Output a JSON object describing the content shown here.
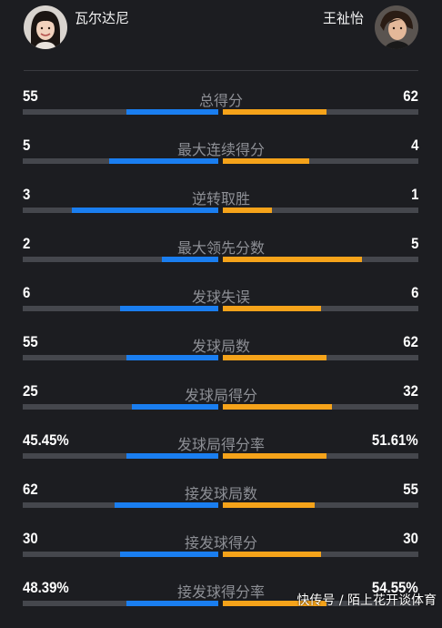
{
  "players": {
    "left": {
      "name": "瓦尔达尼"
    },
    "right": {
      "name": "王祉怡"
    }
  },
  "colors": {
    "left_bar": "#1a7ef0",
    "right_bar": "#f5a31a",
    "track": "#45474d"
  },
  "stats": [
    {
      "label": "总得分",
      "left": "55",
      "right": "62",
      "left_ratio": 0.47,
      "right_ratio": 0.53
    },
    {
      "label": "最大连续得分",
      "left": "5",
      "right": "4",
      "left_ratio": 0.56,
      "right_ratio": 0.44
    },
    {
      "label": "逆转取胜",
      "left": "3",
      "right": "1",
      "left_ratio": 0.75,
      "right_ratio": 0.25
    },
    {
      "label": "最大领先分数",
      "left": "2",
      "right": "5",
      "left_ratio": 0.29,
      "right_ratio": 0.71
    },
    {
      "label": "发球失误",
      "left": "6",
      "right": "6",
      "left_ratio": 0.5,
      "right_ratio": 0.5
    },
    {
      "label": "发球局数",
      "left": "55",
      "right": "62",
      "left_ratio": 0.47,
      "right_ratio": 0.53
    },
    {
      "label": "发球局得分",
      "left": "25",
      "right": "32",
      "left_ratio": 0.44,
      "right_ratio": 0.56
    },
    {
      "label": "发球局得分率",
      "left": "45.45%",
      "right": "51.61%",
      "left_ratio": 0.47,
      "right_ratio": 0.53
    },
    {
      "label": "接发球局数",
      "left": "62",
      "right": "55",
      "left_ratio": 0.53,
      "right_ratio": 0.47
    },
    {
      "label": "接发球得分",
      "left": "30",
      "right": "30",
      "left_ratio": 0.5,
      "right_ratio": 0.5
    },
    {
      "label": "接发球得分率",
      "left": "48.39%",
      "right": "54.55%",
      "left_ratio": 0.47,
      "right_ratio": 0.53
    }
  ],
  "watermark": "快传号 / 陌上花开谈体育"
}
